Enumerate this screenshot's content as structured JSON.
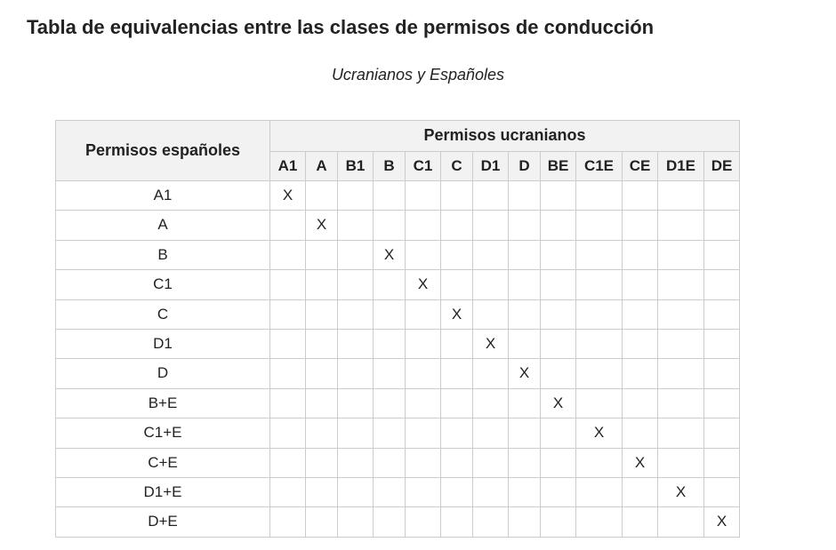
{
  "title": "Tabla de equivalencias entre las clases de permisos de conducción",
  "subtitle": "Ucranianos y Españoles",
  "row_header_label": "Permisos españoles",
  "group_header_label": "Permisos ucranianos",
  "mark": "X",
  "columns": [
    "A1",
    "A",
    "B1",
    "B",
    "C1",
    "C",
    "D1",
    "D",
    "BE",
    "C1E",
    "CE",
    "D1E",
    "DE"
  ],
  "col_width_class": [
    "c-med",
    "c-narrow",
    "c-med",
    "c-narrow",
    "c-med",
    "c-narrow",
    "c-med",
    "c-narrow",
    "c-med",
    "c-wide",
    "c-med",
    "c-wide",
    "c-med"
  ],
  "rows": [
    {
      "label": "A1",
      "marks_at": [
        0
      ]
    },
    {
      "label": "A",
      "marks_at": [
        1
      ]
    },
    {
      "label": "B",
      "marks_at": [
        3
      ]
    },
    {
      "label": "C1",
      "marks_at": [
        4
      ]
    },
    {
      "label": "C",
      "marks_at": [
        5
      ]
    },
    {
      "label": "D1",
      "marks_at": [
        6
      ]
    },
    {
      "label": "D",
      "marks_at": [
        7
      ]
    },
    {
      "label": "B+E",
      "marks_at": [
        8
      ]
    },
    {
      "label": "C1+E",
      "marks_at": [
        9
      ]
    },
    {
      "label": "C+E",
      "marks_at": [
        10
      ]
    },
    {
      "label": "D1+E",
      "marks_at": [
        11
      ]
    },
    {
      "label": "D+E",
      "marks_at": [
        12
      ]
    }
  ],
  "colors": {
    "text": "#222222",
    "border": "#cccccc",
    "header_bg": "#f2f2f2",
    "page_bg": "#ffffff"
  },
  "typography": {
    "font_family": "Verdana",
    "title_size_pt": 16,
    "subtitle_size_pt": 13,
    "header_size_pt": 13,
    "cell_size_pt": 12
  }
}
